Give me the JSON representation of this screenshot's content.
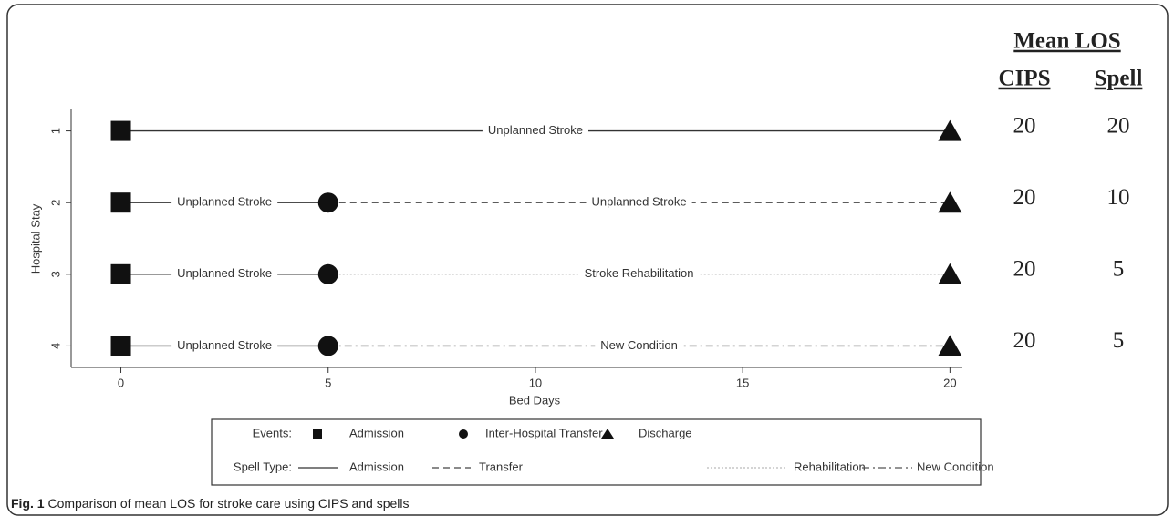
{
  "chart_data": {
    "type": "timeline",
    "x_label": "Bed Days",
    "y_label": "Hospital Stay",
    "xlim": [
      -1.2,
      20.3
    ],
    "xticks": [
      0,
      5,
      10,
      15,
      20
    ],
    "ylim": [
      0.7,
      4.3
    ],
    "yticks": [
      1,
      2,
      3,
      4
    ],
    "y_reversed": true,
    "stays": [
      {
        "y": 1,
        "events": [
          {
            "x": 0,
            "event": "Admission"
          },
          {
            "x": 20,
            "event": "Discharge"
          }
        ],
        "segments": [
          {
            "start": 0,
            "end": 20,
            "label": "Unplanned Stroke",
            "spell": "Admission"
          }
        ]
      },
      {
        "y": 2,
        "events": [
          {
            "x": 0,
            "event": "Admission"
          },
          {
            "x": 5,
            "event": "Inter-Hospital Transfer"
          },
          {
            "x": 20,
            "event": "Discharge"
          }
        ],
        "segments": [
          {
            "start": 0,
            "end": 5,
            "label": "Unplanned Stroke",
            "spell": "Admission"
          },
          {
            "start": 5,
            "end": 20,
            "label": "Unplanned Stroke",
            "spell": "Transfer"
          }
        ]
      },
      {
        "y": 3,
        "events": [
          {
            "x": 0,
            "event": "Admission"
          },
          {
            "x": 5,
            "event": "Inter-Hospital Transfer"
          },
          {
            "x": 20,
            "event": "Discharge"
          }
        ],
        "segments": [
          {
            "start": 0,
            "end": 5,
            "label": "Unplanned Stroke",
            "spell": "Admission"
          },
          {
            "start": 5,
            "end": 20,
            "label": "Stroke Rehabilitation",
            "spell": "Rehabilitation"
          }
        ]
      },
      {
        "y": 4,
        "events": [
          {
            "x": 0,
            "event": "Admission"
          },
          {
            "x": 5,
            "event": "Inter-Hospital Transfer"
          },
          {
            "x": 20,
            "event": "Discharge"
          }
        ],
        "segments": [
          {
            "start": 0,
            "end": 5,
            "label": "Unplanned Stroke",
            "spell": "Admission"
          },
          {
            "start": 5,
            "end": 20,
            "label": "New Condition",
            "spell": "New Condition"
          }
        ]
      }
    ],
    "legend": {
      "events_label": "Events:",
      "events": [
        {
          "name": "Admission",
          "marker": "square"
        },
        {
          "name": "Inter-Hospital Transfer",
          "marker": "circle"
        },
        {
          "name": "Discharge",
          "marker": "triangle"
        }
      ],
      "spell_label": "Spell Type:",
      "spells": [
        {
          "name": "Admission",
          "dash": "none",
          "color": "#333333"
        },
        {
          "name": "Transfer",
          "dash": "7 5",
          "color": "#444444"
        },
        {
          "name": "Rehabilitation",
          "dash": "2 2",
          "color": "#bbbbbb"
        },
        {
          "name": "New Condition",
          "dash": "8 4 2 4",
          "color": "#555555"
        }
      ]
    }
  },
  "table": {
    "title": "Mean LOS",
    "columns": [
      "CIPS",
      "Spell"
    ],
    "rows": [
      [
        20,
        20
      ],
      [
        20,
        10
      ],
      [
        20,
        5
      ],
      [
        20,
        5
      ]
    ]
  },
  "caption": {
    "label": "Fig. 1",
    "text": "Comparison of mean LOS for stroke care using CIPS and spells"
  }
}
